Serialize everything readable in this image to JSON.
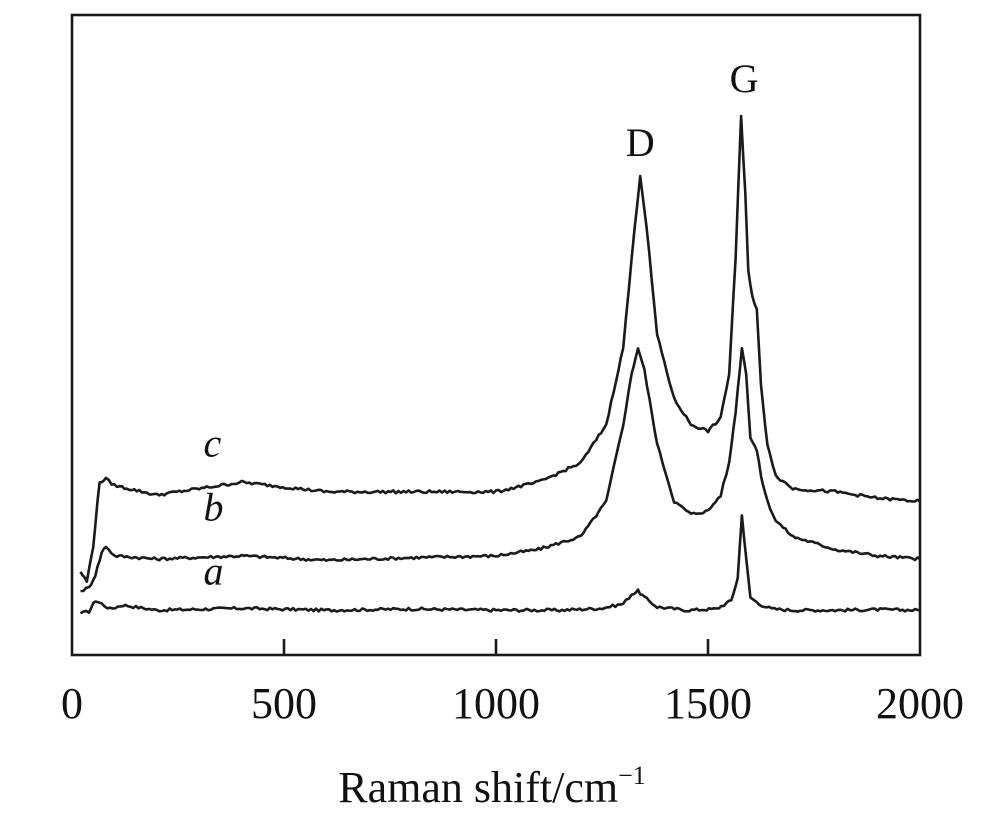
{
  "chart_data": {
    "type": "line",
    "xlabel": "Raman shift/cm",
    "xlabel_sup": "−1",
    "ylabel": "",
    "xlim": [
      0,
      2000
    ],
    "ylim": [
      0,
      100
    ],
    "x_ticks": [
      0,
      500,
      1000,
      1500,
      2000
    ],
    "x_tick_labels": [
      "0",
      "500",
      "1000",
      "1500",
      "2000"
    ],
    "y_ticks_shown": false,
    "grid": false,
    "legend": "none",
    "annotations": [
      {
        "text": "D",
        "x": 1340,
        "y": 78
      },
      {
        "text": "G",
        "x": 1585,
        "y": 88
      }
    ],
    "series": [
      {
        "name": "a",
        "label_at": {
          "x": 310,
          "y": 11
        },
        "x": [
          20,
          40,
          55,
          70,
          90,
          120,
          200,
          400,
          600,
          800,
          1000,
          1150,
          1250,
          1300,
          1320,
          1335,
          1350,
          1380,
          1450,
          1520,
          1555,
          1570,
          1580,
          1590,
          1600,
          1620,
          1650,
          1700,
          1800,
          1900,
          2000
        ],
        "y": [
          6.5,
          6.8,
          8.5,
          8.0,
          7.2,
          7.8,
          7.0,
          7.3,
          7.0,
          7.2,
          7.0,
          7.0,
          7.3,
          8.0,
          9.5,
          10.0,
          9.0,
          7.5,
          7.0,
          7.2,
          8.5,
          12.0,
          22.0,
          15.0,
          9.0,
          8.0,
          7.2,
          7.0,
          7.0,
          7.1,
          7.0
        ]
      },
      {
        "name": "b",
        "label_at": {
          "x": 310,
          "y": 21
        },
        "x": [
          20,
          40,
          55,
          70,
          80,
          100,
          200,
          400,
          600,
          800,
          1000,
          1100,
          1200,
          1260,
          1300,
          1320,
          1335,
          1350,
          1380,
          1420,
          1460,
          1500,
          1530,
          1550,
          1565,
          1580,
          1590,
          1600,
          1615,
          1625,
          1640,
          1660,
          1700,
          1800,
          1900,
          2000
        ],
        "y": [
          10.0,
          10.5,
          12.5,
          16.0,
          17.0,
          15.5,
          15.0,
          15.5,
          14.8,
          15.2,
          15.5,
          16.5,
          18.5,
          24.0,
          36.0,
          44.0,
          48.0,
          44.5,
          33.0,
          24.0,
          22.0,
          22.5,
          25.0,
          30.0,
          38.0,
          48.0,
          44.0,
          34.0,
          32.0,
          28.0,
          24.0,
          21.0,
          18.5,
          16.5,
          15.5,
          15.0
        ]
      },
      {
        "name": "c",
        "label_at": {
          "x": 310,
          "y": 31
        },
        "x": [
          20,
          35,
          50,
          65,
          80,
          100,
          200,
          300,
          400,
          600,
          800,
          1000,
          1100,
          1200,
          1260,
          1300,
          1320,
          1340,
          1355,
          1380,
          1420,
          1460,
          1500,
          1530,
          1550,
          1565,
          1578,
          1588,
          1595,
          1605,
          1615,
          1625,
          1640,
          1660,
          1700,
          1800,
          1900,
          2000
        ],
        "y": [
          13.0,
          11.5,
          17.0,
          27.0,
          27.5,
          26.5,
          25.0,
          26.0,
          27.0,
          25.5,
          25.5,
          25.5,
          27.0,
          30.0,
          36.0,
          48.0,
          62.0,
          75.0,
          67.0,
          50.0,
          40.0,
          36.0,
          35.0,
          37.0,
          44.0,
          62.0,
          84.0,
          72.0,
          60.0,
          56.0,
          54.0,
          42.0,
          33.0,
          28.0,
          26.0,
          25.5,
          24.5,
          24.0
        ]
      }
    ]
  }
}
